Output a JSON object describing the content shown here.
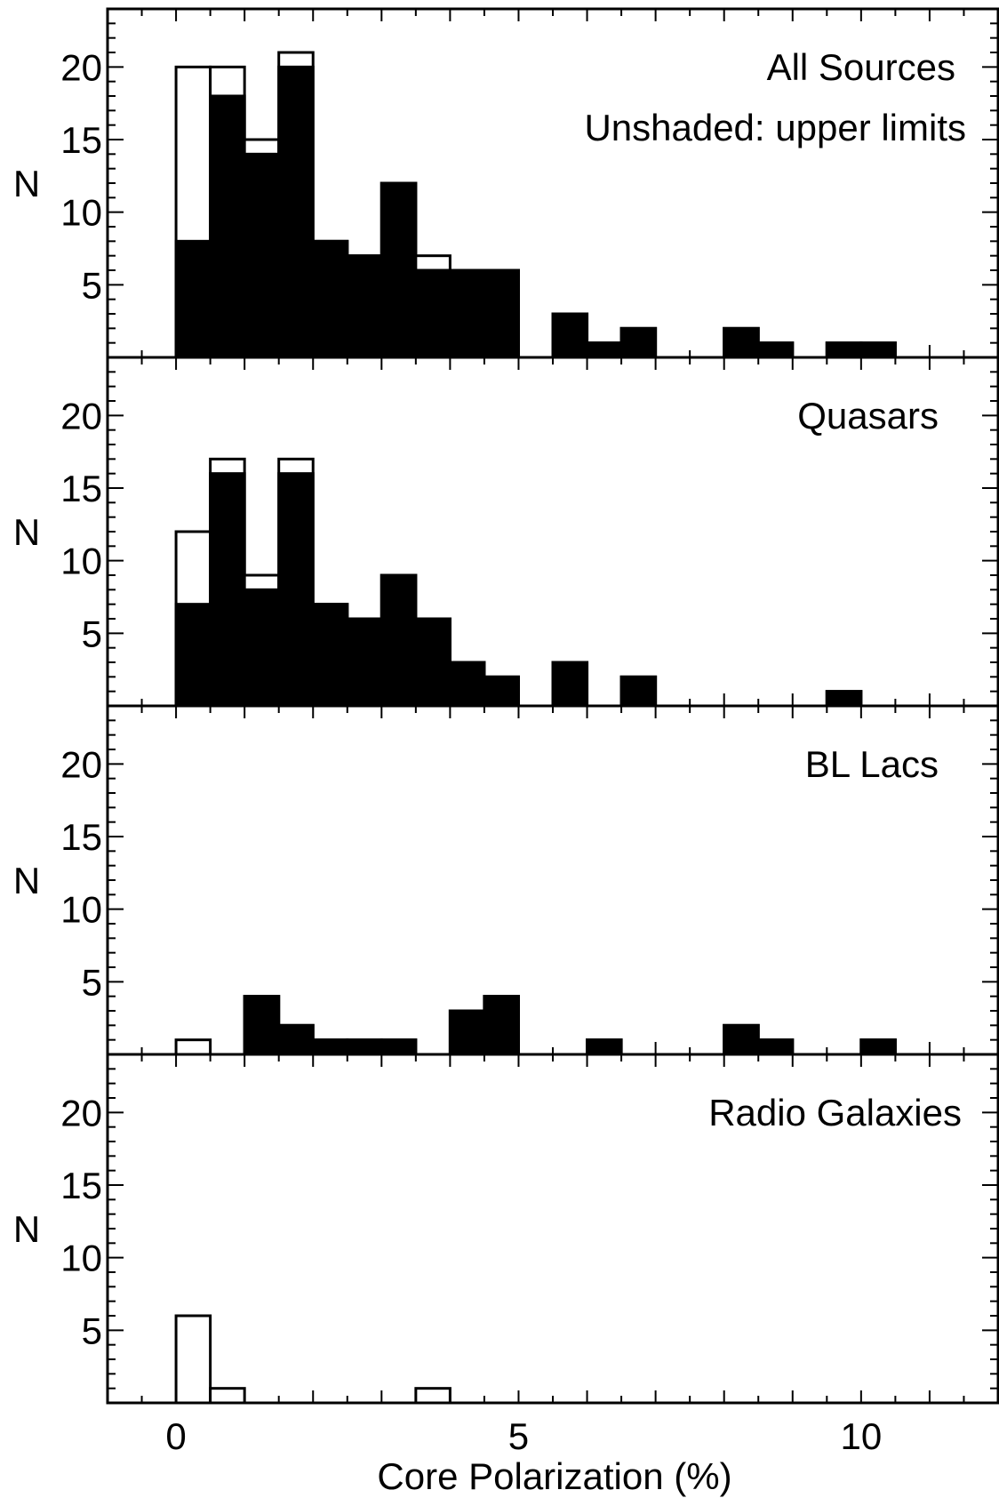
{
  "chart_data": {
    "type": "bar",
    "figure": {
      "xlabel": "Core Polarization (%)",
      "ylabel": "N",
      "xlim": [
        -1,
        12
      ],
      "ylim": [
        0,
        24
      ],
      "xticks": [
        0,
        5,
        10
      ],
      "yticks": [
        5,
        10,
        15,
        20
      ],
      "bin_width": 0.5
    },
    "panels": [
      {
        "title": "All Sources",
        "subtitle": "Unshaded: upper limits",
        "bins": [
          {
            "x0": 0.0,
            "total": 20,
            "detected": 8
          },
          {
            "x0": 0.5,
            "total": 20,
            "detected": 18
          },
          {
            "x0": 1.0,
            "total": 15,
            "detected": 14
          },
          {
            "x0": 1.5,
            "total": 21,
            "detected": 20
          },
          {
            "x0": 2.0,
            "total": 8,
            "detected": 8
          },
          {
            "x0": 2.5,
            "total": 7,
            "detected": 7
          },
          {
            "x0": 3.0,
            "total": 12,
            "detected": 12
          },
          {
            "x0": 3.5,
            "total": 7,
            "detected": 6
          },
          {
            "x0": 4.0,
            "total": 6,
            "detected": 6
          },
          {
            "x0": 4.5,
            "total": 6,
            "detected": 6
          },
          {
            "x0": 5.5,
            "total": 3,
            "detected": 3
          },
          {
            "x0": 6.0,
            "total": 1,
            "detected": 1
          },
          {
            "x0": 6.5,
            "total": 2,
            "detected": 2
          },
          {
            "x0": 8.0,
            "total": 2,
            "detected": 2
          },
          {
            "x0": 8.5,
            "total": 1,
            "detected": 1
          },
          {
            "x0": 9.5,
            "total": 1,
            "detected": 1
          },
          {
            "x0": 10.0,
            "total": 1,
            "detected": 1
          }
        ]
      },
      {
        "title": "Quasars",
        "subtitle": "",
        "bins": [
          {
            "x0": 0.0,
            "total": 12,
            "detected": 7
          },
          {
            "x0": 0.5,
            "total": 17,
            "detected": 16
          },
          {
            "x0": 1.0,
            "total": 9,
            "detected": 8
          },
          {
            "x0": 1.5,
            "total": 17,
            "detected": 16
          },
          {
            "x0": 2.0,
            "total": 7,
            "detected": 7
          },
          {
            "x0": 2.5,
            "total": 6,
            "detected": 6
          },
          {
            "x0": 3.0,
            "total": 9,
            "detected": 9
          },
          {
            "x0": 3.5,
            "total": 6,
            "detected": 6
          },
          {
            "x0": 4.0,
            "total": 3,
            "detected": 3
          },
          {
            "x0": 4.5,
            "total": 2,
            "detected": 2
          },
          {
            "x0": 5.5,
            "total": 3,
            "detected": 3
          },
          {
            "x0": 6.5,
            "total": 2,
            "detected": 2
          },
          {
            "x0": 9.5,
            "total": 1,
            "detected": 1
          }
        ]
      },
      {
        "title": "BL Lacs",
        "subtitle": "",
        "bins": [
          {
            "x0": 0.0,
            "total": 1,
            "detected": 0
          },
          {
            "x0": 1.0,
            "total": 4,
            "detected": 4
          },
          {
            "x0": 1.5,
            "total": 2,
            "detected": 2
          },
          {
            "x0": 2.0,
            "total": 1,
            "detected": 1
          },
          {
            "x0": 2.5,
            "total": 1,
            "detected": 1
          },
          {
            "x0": 3.0,
            "total": 1,
            "detected": 1
          },
          {
            "x0": 4.0,
            "total": 3,
            "detected": 3
          },
          {
            "x0": 4.5,
            "total": 4,
            "detected": 4
          },
          {
            "x0": 6.0,
            "total": 1,
            "detected": 1
          },
          {
            "x0": 8.0,
            "total": 2,
            "detected": 2
          },
          {
            "x0": 8.5,
            "total": 1,
            "detected": 1
          },
          {
            "x0": 10.0,
            "total": 1,
            "detected": 1
          }
        ]
      },
      {
        "title": "Radio Galaxies",
        "subtitle": "",
        "bins": [
          {
            "x0": 0.0,
            "total": 6,
            "detected": 0
          },
          {
            "x0": 0.5,
            "total": 1,
            "detected": 0
          },
          {
            "x0": 3.5,
            "total": 1,
            "detected": 0
          }
        ]
      }
    ]
  }
}
